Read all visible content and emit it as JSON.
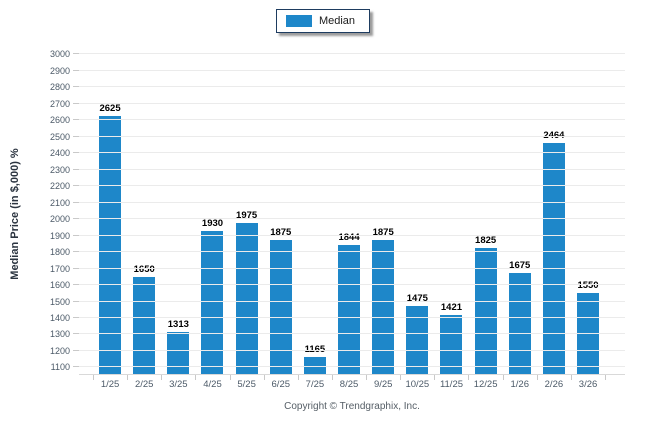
{
  "legend": {
    "label": "Median",
    "swatch_color": "#1E87C9"
  },
  "chart_data": {
    "type": "bar",
    "title": "",
    "series_name": "Median",
    "categories": [
      "1/25",
      "2/25",
      "3/25",
      "4/25",
      "5/25",
      "6/25",
      "7/25",
      "8/25",
      "9/25",
      "10/25",
      "11/25",
      "12/25",
      "1/26",
      "2/26",
      "3/26"
    ],
    "values": [
      2625,
      1650,
      1313,
      1930,
      1975,
      1875,
      1165,
      1844,
      1875,
      1475,
      1421,
      1825,
      1675,
      2464,
      1550
    ],
    "xlabel": "",
    "ylabel": "Median Price (in $,000) %",
    "ylim": [
      1100,
      3000
    ],
    "ytick_step": 100,
    "grid": true,
    "legend_position": "top-center",
    "bar_color": "#1E87C9",
    "value_label_color": "#000000",
    "axis_text_color": "#4c5a68"
  },
  "footer": {
    "copyright": "Copyright © Trendgraphix, Inc."
  }
}
